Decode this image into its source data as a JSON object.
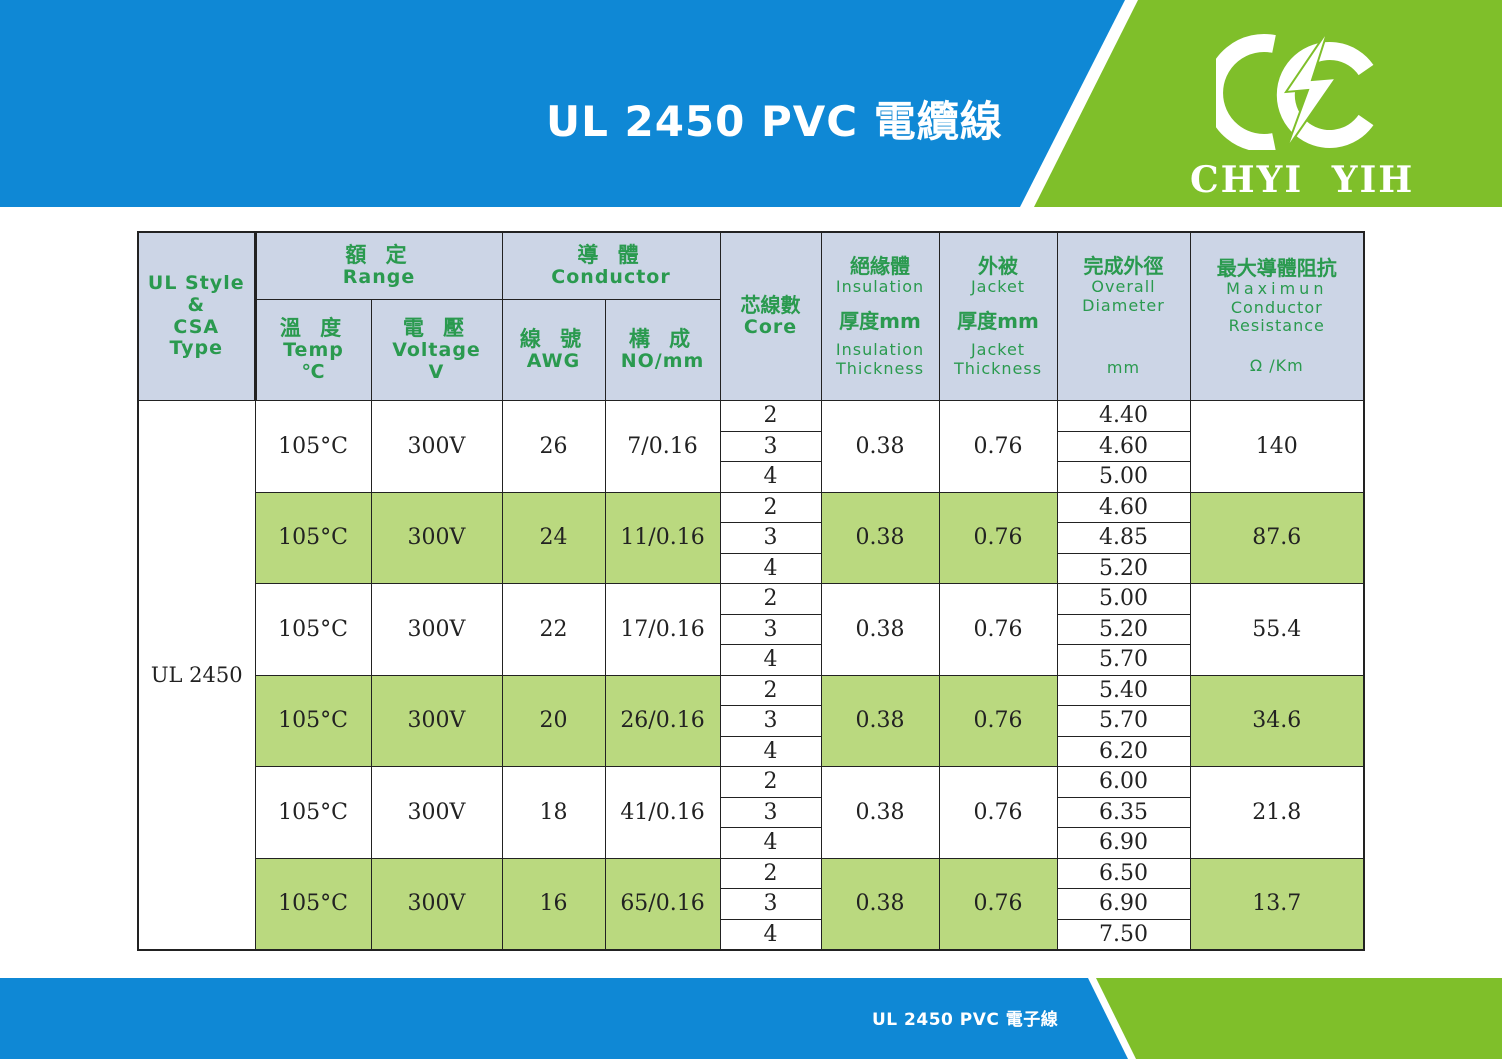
{
  "header": {
    "title": "UL 2450 PVC 電纜線",
    "brand": "CHYI YIH",
    "colors": {
      "blue": "#0f88d5",
      "green": "#7fbf2a",
      "header_cell": "#ccd5e6",
      "green_row": "#bad97f",
      "header_text": "#2a9a4f"
    }
  },
  "footer": {
    "text": "UL 2450 PVC 電子線"
  },
  "table": {
    "headers": {
      "style": [
        "UL Style",
        "&",
        "CSA",
        "Type"
      ],
      "range_zh": "額 定",
      "range_en": "Range",
      "conductor_zh": "導 體",
      "conductor_en": "Conductor",
      "core_zh": "芯線數",
      "core_en": "Core",
      "insulation_zh": "絕緣體",
      "insulation_en": "Insulation",
      "insulation_thk_zh": "厚度mm",
      "insulation_thk_en1": "Insulation",
      "insulation_thk_en2": "Thickness",
      "jacket_zh": "外被",
      "jacket_en": "Jacket",
      "jacket_thk_zh": "厚度mm",
      "jacket_thk_en1": "Jacket",
      "jacket_thk_en2": "Thickness",
      "od_zh": "完成外徑",
      "od_en1": "Overall",
      "od_en2": "Diameter",
      "od_unit": "mm",
      "res_zh": "最大導體阻抗",
      "res_en1": "Maximun",
      "res_en2": "Conductor",
      "res_en3": "Resistance",
      "res_unit": "Ω /Km",
      "temp_zh": "溫 度",
      "temp_en": "Temp",
      "temp_unit": "℃",
      "volt_zh": "電 壓",
      "volt_en": "Voltage",
      "volt_unit": "V",
      "awg_zh": "線 號",
      "awg_en": "AWG",
      "no_zh": "構 成",
      "no_en": "NO/mm"
    },
    "style_value": "UL 2450",
    "groups": [
      {
        "temp": "105°C",
        "volt": "300V",
        "awg": "26",
        "no": "7/0.16",
        "cores": [
          "2",
          "3",
          "4"
        ],
        "insulation": "0.38",
        "jacket": "0.76",
        "diameters": [
          "4.40",
          "4.60",
          "5.00"
        ],
        "resistance": "140"
      },
      {
        "temp": "105°C",
        "volt": "300V",
        "awg": "24",
        "no": "11/0.16",
        "cores": [
          "2",
          "3",
          "4"
        ],
        "insulation": "0.38",
        "jacket": "0.76",
        "diameters": [
          "4.60",
          "4.85",
          "5.20"
        ],
        "resistance": "87.6"
      },
      {
        "temp": "105°C",
        "volt": "300V",
        "awg": "22",
        "no": "17/0.16",
        "cores": [
          "2",
          "3",
          "4"
        ],
        "insulation": "0.38",
        "jacket": "0.76",
        "diameters": [
          "5.00",
          "5.20",
          "5.70"
        ],
        "resistance": "55.4"
      },
      {
        "temp": "105°C",
        "volt": "300V",
        "awg": "20",
        "no": "26/0.16",
        "cores": [
          "2",
          "3",
          "4"
        ],
        "insulation": "0.38",
        "jacket": "0.76",
        "diameters": [
          "5.40",
          "5.70",
          "6.20"
        ],
        "resistance": "34.6"
      },
      {
        "temp": "105°C",
        "volt": "300V",
        "awg": "18",
        "no": "41/0.16",
        "cores": [
          "2",
          "3",
          "4"
        ],
        "insulation": "0.38",
        "jacket": "0.76",
        "diameters": [
          "6.00",
          "6.35",
          "6.90"
        ],
        "resistance": "21.8"
      },
      {
        "temp": "105°C",
        "volt": "300V",
        "awg": "16",
        "no": "65/0.16",
        "cores": [
          "2",
          "3",
          "4"
        ],
        "insulation": "0.38",
        "jacket": "0.76",
        "diameters": [
          "6.50",
          "6.90",
          "7.50"
        ],
        "resistance": "13.7"
      }
    ]
  }
}
